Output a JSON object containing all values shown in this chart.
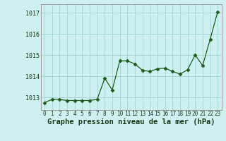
{
  "hours": [
    0,
    1,
    2,
    3,
    4,
    5,
    6,
    7,
    8,
    9,
    10,
    11,
    12,
    13,
    14,
    15,
    16,
    17,
    18,
    19,
    20,
    21,
    22,
    23
  ],
  "pressure": [
    1012.75,
    1012.9,
    1012.9,
    1012.85,
    1012.85,
    1012.85,
    1012.85,
    1012.9,
    1013.9,
    1013.35,
    1014.72,
    1014.72,
    1014.58,
    1014.28,
    1014.22,
    1014.35,
    1014.38,
    1014.22,
    1014.1,
    1014.3,
    1015.0,
    1014.5,
    1015.75,
    1017.05
  ],
  "line_color": "#1a5c1a",
  "marker": "D",
  "marker_size": 2.5,
  "background_color": "#cff0f0",
  "grid_color": "#a8d8d8",
  "xlabel": "Graphe pression niveau de la mer (hPa)",
  "xlabel_fontsize": 7.5,
  "ytick_labels": [
    "1013",
    "1014",
    "1015",
    "1016",
    "1017"
  ],
  "ytick_values": [
    1013,
    1014,
    1015,
    1016,
    1017
  ],
  "ylim": [
    1012.4,
    1017.4
  ],
  "xlim": [
    -0.5,
    23.5
  ],
  "border_color": "#999999",
  "tick_fontsize": 6.0,
  "xtick_fontsize": 5.5
}
